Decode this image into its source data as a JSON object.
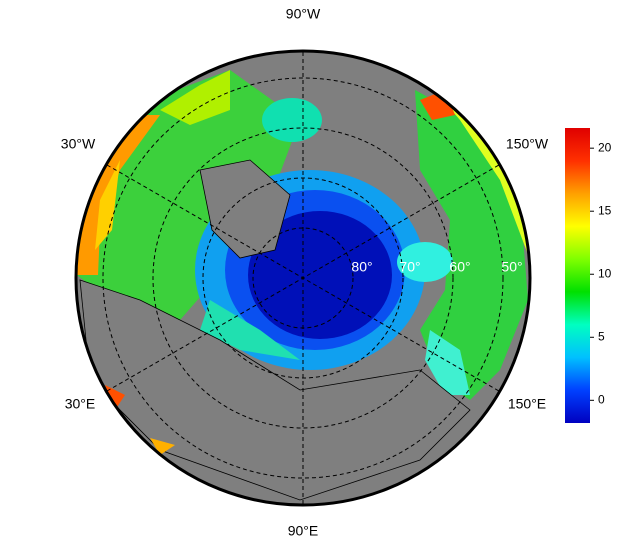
{
  "map": {
    "longitude_labels": [
      "90°W",
      "30°W",
      "150°W",
      "30°E",
      "150°E",
      "90°E"
    ],
    "latitude_labels": [
      "80°",
      "70°",
      "60°",
      "50°"
    ],
    "colorbar": {
      "lim": [
        -1.8,
        21.6
      ],
      "ticks": [
        0,
        5,
        10,
        15,
        20
      ],
      "colors": [
        "#0000c0",
        "#0040ff",
        "#00c0ff",
        "#00ffc0",
        "#00e000",
        "#80ff00",
        "#ffff00",
        "#ffa000",
        "#ff3000",
        "#e00000"
      ]
    }
  }
}
